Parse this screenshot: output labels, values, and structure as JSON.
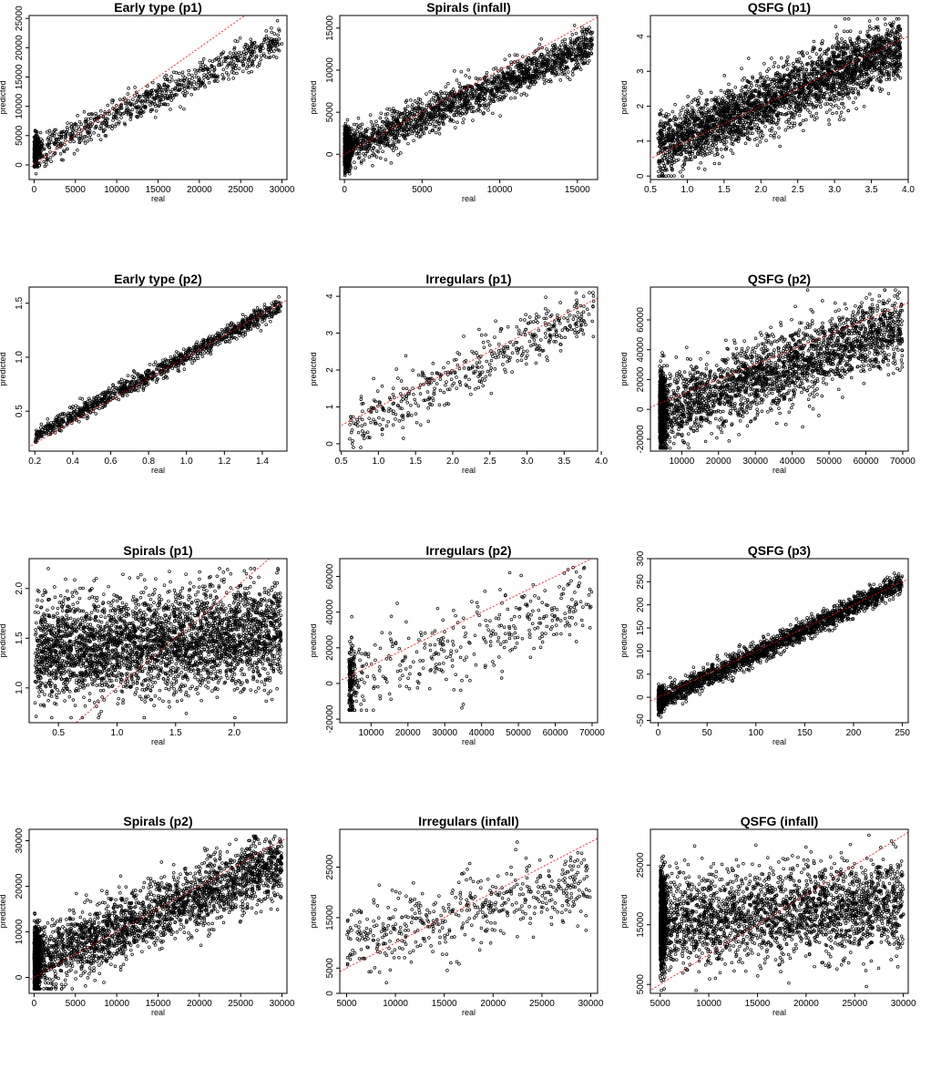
{
  "figure": {
    "background": "#ffffff",
    "point_color": "#000000",
    "reference_line_color": "#ff0000",
    "reference_line_style": "dashed",
    "layout": "4 rows x 3 columns"
  },
  "chart_data": [
    {
      "id": "early-type-p1",
      "type": "scatter",
      "title": "Early type (p1)",
      "xlabel": "real",
      "ylabel": "predicted",
      "grid": false,
      "reference_line": "y = x",
      "xlim": [
        -600,
        30600
      ],
      "ylim": [
        -2500,
        25500
      ],
      "xticks": [
        0,
        5000,
        10000,
        15000,
        20000,
        25000,
        30000
      ],
      "xtick_labels": [
        "0",
        "5000",
        "10000",
        "15000",
        "20000",
        "25000",
        "30000"
      ],
      "yticks": [
        0,
        5000,
        10000,
        15000,
        20000,
        25000
      ],
      "ytick_labels": [
        "0",
        "5000",
        "10000",
        "15000",
        "20000",
        "25000"
      ],
      "points": {
        "n": 1100,
        "x_range": [
          0,
          30000
        ],
        "y_range": [
          -1500,
          25000
        ],
        "trend_slope": 0.85,
        "spread": 1300,
        "note": "dense cluster near origin"
      }
    },
    {
      "id": "spirals-infall",
      "type": "scatter",
      "title": "Spirals (infall)",
      "xlabel": "real",
      "ylabel": "predicted",
      "grid": false,
      "reference_line": "y = x",
      "xlim": [
        -300,
        16300
      ],
      "ylim": [
        -3000,
        16500
      ],
      "xticks": [
        0,
        5000,
        10000,
        15000
      ],
      "xtick_labels": [
        "0",
        "5000",
        "10000",
        "15000"
      ],
      "yticks": [
        0,
        5000,
        10000,
        15000
      ],
      "ytick_labels": [
        "0",
        "5000",
        "10000",
        "15000"
      ],
      "points": {
        "n": 2600,
        "x_range": [
          0,
          16000
        ],
        "y_range": [
          -2500,
          16000
        ],
        "trend_slope": 0.8,
        "spread": 1100,
        "note": "dense cluster at x near 0"
      }
    },
    {
      "id": "qsfg-p1",
      "type": "scatter",
      "title": "QSFG (p1)",
      "xlabel": "real",
      "ylabel": "predicted",
      "grid": false,
      "reference_line": "y = x",
      "xlim": [
        0.5,
        4.0
      ],
      "ylim": [
        -0.1,
        4.6
      ],
      "xticks": [
        0.5,
        1.0,
        1.5,
        2.0,
        2.5,
        3.0,
        3.5,
        4.0
      ],
      "xtick_labels": [
        "0.5",
        "1.0",
        "1.5",
        "2.0",
        "2.5",
        "3.0",
        "3.5",
        "4.0"
      ],
      "yticks": [
        0,
        1,
        2,
        3,
        4
      ],
      "ytick_labels": [
        "0",
        "1",
        "2",
        "3",
        "4"
      ],
      "points": {
        "n": 3200,
        "x_range": [
          0.6,
          3.9
        ],
        "y_range": [
          0,
          4.5
        ],
        "trend_slope": 0.75,
        "spread": 0.45
      }
    },
    {
      "id": "early-type-p2",
      "type": "scatter",
      "title": "Early type (p2)",
      "xlabel": "real",
      "ylabel": "predicted",
      "grid": false,
      "reference_line": "y = x",
      "xlim": [
        0.17,
        1.53
      ],
      "ylim": [
        0.13,
        1.65
      ],
      "xticks": [
        0.2,
        0.4,
        0.6,
        0.8,
        1.0,
        1.2,
        1.4
      ],
      "xtick_labels": [
        "0.2",
        "0.4",
        "0.6",
        "0.8",
        "1.0",
        "1.2",
        "1.4"
      ],
      "yticks": [
        0.5,
        1.0,
        1.5
      ],
      "ytick_labels": [
        "0.5",
        "1.0",
        "1.5"
      ],
      "points": {
        "n": 1100,
        "x_range": [
          0.2,
          1.5
        ],
        "y_range": [
          0.15,
          1.6
        ],
        "trend_slope": 0.98,
        "spread": 0.04
      }
    },
    {
      "id": "irregulars-p1",
      "type": "scatter",
      "title": "Irregulars (p1)",
      "xlabel": "real",
      "ylabel": "predicted",
      "grid": false,
      "reference_line": "y = x",
      "xlim": [
        0.48,
        3.95
      ],
      "ylim": [
        -0.2,
        4.25
      ],
      "xticks": [
        0.5,
        1.0,
        1.5,
        2.0,
        2.5,
        3.0,
        3.5,
        4.0
      ],
      "xtick_labels": [
        "0.5",
        "1.0",
        "1.5",
        "2.0",
        "2.5",
        "3.0",
        "3.5",
        "4.0"
      ],
      "yticks": [
        0,
        1,
        2,
        3,
        4
      ],
      "ytick_labels": [
        "0",
        "1",
        "2",
        "3",
        "4"
      ],
      "points": {
        "n": 480,
        "x_range": [
          0.6,
          3.9
        ],
        "y_range": [
          -0.1,
          4.1
        ],
        "trend_slope": 0.9,
        "spread": 0.35
      }
    },
    {
      "id": "qsfg-p2",
      "type": "scatter",
      "title": "QSFG (p2)",
      "xlabel": "real",
      "ylabel": "predicted",
      "grid": false,
      "reference_line": "y = x",
      "xlim": [
        1500,
        71500
      ],
      "ylim": [
        -28000,
        82000
      ],
      "xticks": [
        10000,
        20000,
        30000,
        40000,
        50000,
        60000,
        70000
      ],
      "xtick_labels": [
        "10000",
        "20000",
        "30000",
        "40000",
        "50000",
        "60000",
        "70000"
      ],
      "yticks": [
        -20000,
        0,
        20000,
        40000,
        60000
      ],
      "ytick_labels": [
        "-20000",
        "0",
        "20000",
        "40000",
        "60000"
      ],
      "points": {
        "n": 3500,
        "x_range": [
          4000,
          70000
        ],
        "y_range": [
          -26000,
          80000
        ],
        "trend_slope": 0.65,
        "spread": 12000,
        "note": "dense vertical cluster at low x"
      }
    },
    {
      "id": "spirals-p1",
      "type": "scatter",
      "title": "Spirals (p1)",
      "xlabel": "real",
      "ylabel": "predicted",
      "grid": false,
      "reference_line": "y = x",
      "xlim": [
        0.25,
        2.45
      ],
      "ylim": [
        0.65,
        2.3
      ],
      "xticks": [
        0.5,
        1.0,
        1.5,
        2.0
      ],
      "xtick_labels": [
        "0.5",
        "1.0",
        "1.5",
        "2.0"
      ],
      "yticks": [
        1.0,
        1.5,
        2.0
      ],
      "ytick_labels": [
        "1.0",
        "1.5",
        "2.0"
      ],
      "points": {
        "n": 3500,
        "x_range": [
          0.3,
          2.4
        ],
        "y_range": [
          0.7,
          2.2
        ],
        "trend_slope": 0.15,
        "spread": 0.25
      }
    },
    {
      "id": "irregulars-p2",
      "type": "scatter",
      "title": "Irregulars (p2)",
      "xlabel": "real",
      "ylabel": "predicted",
      "grid": false,
      "reference_line": "y = x",
      "xlim": [
        1500,
        71500
      ],
      "ylim": [
        -22000,
        70000
      ],
      "xticks": [
        10000,
        20000,
        30000,
        40000,
        50000,
        60000,
        70000
      ],
      "xtick_labels": [
        "10000",
        "20000",
        "30000",
        "40000",
        "50000",
        "60000",
        "70000"
      ],
      "yticks": [
        -20000,
        0,
        20000,
        40000,
        60000
      ],
      "ytick_labels": [
        "-20000",
        "0",
        "20000",
        "40000",
        "60000"
      ],
      "points": {
        "n": 520,
        "x_range": [
          4000,
          70000
        ],
        "y_range": [
          -15000,
          65000
        ],
        "trend_slope": 0.7,
        "spread": 11000,
        "note": "dense vertical cluster at low x"
      }
    },
    {
      "id": "qsfg-p3",
      "type": "scatter",
      "title": "QSFG (p3)",
      "xlabel": "real",
      "ylabel": "predicted",
      "grid": false,
      "reference_line": "y = x",
      "xlim": [
        -8,
        256
      ],
      "ylim": [
        -55,
        300
      ],
      "xticks": [
        0,
        50,
        100,
        150,
        200,
        250
      ],
      "xtick_labels": [
        "0",
        "50",
        "100",
        "150",
        "200",
        "250"
      ],
      "yticks": [
        -50,
        0,
        50,
        100,
        150,
        200,
        250,
        300
      ],
      "ytick_labels": [
        "-50",
        "0",
        "50",
        "100",
        "150",
        "200",
        "250",
        "300"
      ],
      "points": {
        "n": 3000,
        "x_range": [
          0,
          250
        ],
        "y_range": [
          -50,
          290
        ],
        "trend_slope": 0.88,
        "spread": 11,
        "note": "dense vertical cluster at x near 0"
      }
    },
    {
      "id": "spirals-p2",
      "type": "scatter",
      "title": "Spirals (p2)",
      "xlabel": "real",
      "ylabel": "predicted",
      "grid": false,
      "reference_line": "y = x",
      "xlim": [
        -600,
        30600
      ],
      "ylim": [
        -3500,
        32500
      ],
      "xticks": [
        0,
        5000,
        10000,
        15000,
        20000,
        25000,
        30000
      ],
      "xtick_labels": [
        "0",
        "5000",
        "10000",
        "15000",
        "20000",
        "25000",
        "30000"
      ],
      "yticks": [
        0,
        10000,
        20000,
        30000
      ],
      "ytick_labels": [
        "0",
        "10000",
        "20000",
        "30000"
      ],
      "points": {
        "n": 3500,
        "x_range": [
          0,
          30000
        ],
        "y_range": [
          -2500,
          31000
        ],
        "trend_slope": 0.75,
        "spread": 3500,
        "note": "dense cluster near origin"
      }
    },
    {
      "id": "irregulars-infall",
      "type": "scatter",
      "title": "Irregulars (infall)",
      "xlabel": "real",
      "ylabel": "predicted",
      "grid": false,
      "reference_line": "y = x",
      "xlim": [
        4300,
        30700
      ],
      "ylim": [
        0,
        32500
      ],
      "xticks": [
        5000,
        10000,
        15000,
        20000,
        25000,
        30000
      ],
      "xtick_labels": [
        "5000",
        "10000",
        "15000",
        "20000",
        "25000",
        "30000"
      ],
      "yticks": [
        0,
        5000,
        15000,
        25000
      ],
      "ytick_labels": [
        "0",
        "5000",
        "15000",
        "25000"
      ],
      "points": {
        "n": 520,
        "x_range": [
          5000,
          30000
        ],
        "y_range": [
          1000,
          31000
        ],
        "trend_slope": 0.5,
        "spread": 3500
      }
    },
    {
      "id": "qsfg-infall",
      "type": "scatter",
      "title": "QSFG (infall)",
      "xlabel": "real",
      "ylabel": "predicted",
      "grid": false,
      "reference_line": "y = x",
      "xlim": [
        4000,
        30500
      ],
      "ylim": [
        3500,
        31000
      ],
      "xticks": [
        5000,
        10000,
        15000,
        20000,
        25000,
        30000
      ],
      "xtick_labels": [
        "5000",
        "10000",
        "15000",
        "20000",
        "25000",
        "30000"
      ],
      "yticks": [
        5000,
        15000,
        25000
      ],
      "ytick_labels": [
        "5000",
        "15000",
        "25000"
      ],
      "points": {
        "n": 3500,
        "x_range": [
          5000,
          30000
        ],
        "y_range": [
          4000,
          30000
        ],
        "trend_slope": 0.12,
        "spread": 3800,
        "note": "dense vertical cluster at low x"
      }
    }
  ]
}
